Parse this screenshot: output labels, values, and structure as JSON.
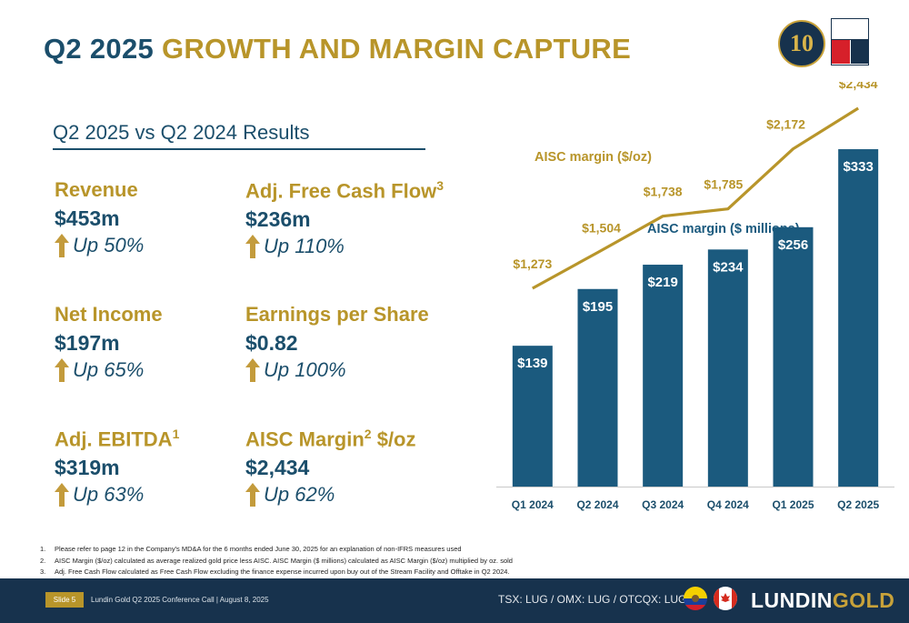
{
  "header": {
    "title_part1": "Q2 2025",
    "title_part2": "GROWTH AND MARGIN CAPTURE",
    "logo_text": "10"
  },
  "subtitle": "Q2 2025 vs Q2 2024 Results",
  "metrics": [
    {
      "label": "Revenue",
      "sup": "",
      "value": "$453m",
      "change": "Up 50%"
    },
    {
      "label": "Adj. Free Cash Flow",
      "sup": "3",
      "value": "$236m",
      "change": "Up 110%"
    },
    {
      "label": "Net Income",
      "sup": "",
      "value": "$197m",
      "change": "Up 65%"
    },
    {
      "label": "Earnings per Share",
      "sup": "",
      "value": "$0.82",
      "change": "Up 100%"
    },
    {
      "label": "Adj. EBITDA",
      "sup": "1",
      "value": "$319m",
      "change": "Up 63%"
    },
    {
      "label": "AISC Margin",
      "sup": "2",
      "label_suffix": " $/oz",
      "value": "$2,434",
      "change": "Up 62%"
    }
  ],
  "chart_data": {
    "type": "bar",
    "categories": [
      "Q1 2024",
      "Q2 2024",
      "Q3 2024",
      "Q4 2024",
      "Q1 2025",
      "Q2 2025"
    ],
    "series": [
      {
        "name": "AISC margin ($ millions)",
        "type": "bar",
        "values": [
          139,
          195,
          219,
          234,
          256,
          333
        ],
        "labels": [
          "$139",
          "$195",
          "$219",
          "$234",
          "$256",
          "$333"
        ],
        "color": "#1b5a7e"
      },
      {
        "name": "AISC margin ($/oz)",
        "type": "line",
        "values": [
          1273,
          1504,
          1738,
          1785,
          2172,
          2434
        ],
        "labels": [
          "$1,273",
          "$1,504",
          "$1,738",
          "$1,785",
          "$2,172",
          "$2,434"
        ],
        "color": "#b8952a"
      }
    ],
    "grid": false
  },
  "footnotes": [
    {
      "num": "1.",
      "text": "Please refer to page 12 in the Company's MD&A for the 6 months ended June 30, 2025 for an explanation of non-IFRS measures used"
    },
    {
      "num": "2.",
      "text": "AISC Margin ($/oz) calculated as average realized gold price less AISC.  AISC Margin ($ millions) calculated as AISC Margin ($/oz) multiplied by oz. sold"
    },
    {
      "num": "3.",
      "text": "Adj. Free Cash Flow calculated as Free Cash Flow excluding the finance expense incurred upon buy out of the Stream Facility and Offtake in Q2 2024."
    }
  ],
  "footer": {
    "slide": "Slide 5",
    "event": "Lundin Gold Q2 2025 Conference Call | August 8, 2025",
    "ticker": "TSX: LUG / OMX: LUG / OTCQX: LUGDF",
    "brand_part1": "LUNDIN",
    "brand_part2": "GOLD"
  },
  "colors": {
    "navy": "#1b4e6b",
    "gold": "#b8952a",
    "footer": "#17324d",
    "bar": "#1b5a7e"
  }
}
